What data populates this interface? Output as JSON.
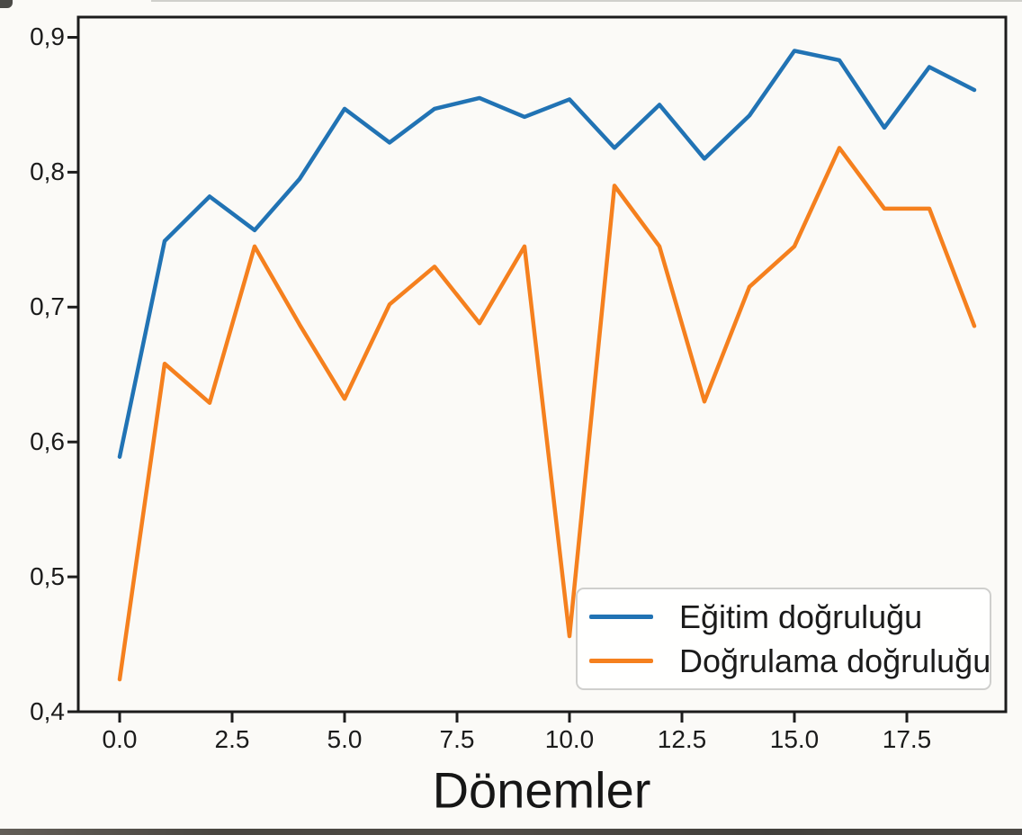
{
  "figure": {
    "background": "#fbfaf7",
    "spine_color": "#1c1c1c",
    "accent_blue": "#2173b4",
    "accent_orange": "#f5801e"
  },
  "axes": {
    "x": {
      "title": "Dönemler",
      "ticks": [
        {
          "value": 0,
          "label": "0.0"
        },
        {
          "value": 2.5,
          "label": "2.5"
        },
        {
          "value": 5,
          "label": "5.0"
        },
        {
          "value": 7.5,
          "label": "7.5"
        },
        {
          "value": 10,
          "label": "10.0"
        },
        {
          "value": 12.5,
          "label": "12.5"
        },
        {
          "value": 15,
          "label": "15.0"
        },
        {
          "value": 17.5,
          "label": "17.5"
        }
      ]
    },
    "y": {
      "ticks": [
        {
          "value": 0.4,
          "label": "0,4"
        },
        {
          "value": 0.5,
          "label": "0,5"
        },
        {
          "value": 0.6,
          "label": "0,6"
        },
        {
          "value": 0.7,
          "label": "0,7"
        },
        {
          "value": 0.8,
          "label": "0,8"
        },
        {
          "value": 0.9,
          "label": "0,9"
        }
      ]
    }
  },
  "legend": {
    "position": "lower right",
    "items": [
      {
        "label": "Eğitim doğruluğu",
        "color": "#2173b4"
      },
      {
        "label": "Doğrulama doğruluğu",
        "color": "#f5801e"
      }
    ]
  },
  "chart_data": {
    "type": "line",
    "title": "",
    "xlabel": "Dönemler",
    "ylabel": "",
    "grid": false,
    "legend_position": "lower right",
    "xlim": [
      -0.92,
      19.7
    ],
    "ylim": [
      0.4,
      0.915
    ],
    "x_ticks": [
      0,
      2.5,
      5,
      7.5,
      10,
      12.5,
      15,
      17.5
    ],
    "y_ticks": [
      0.4,
      0.5,
      0.6,
      0.7,
      0.8,
      0.9
    ],
    "x": [
      0,
      1,
      2,
      3,
      4,
      5,
      6,
      7,
      8,
      9,
      10,
      11,
      12,
      13,
      14,
      15,
      16,
      17,
      18,
      19
    ],
    "series": [
      {
        "name": "Eğitim doğruluğu",
        "color": "#2173b4",
        "values": [
          0.589,
          0.749,
          0.782,
          0.757,
          0.795,
          0.847,
          0.822,
          0.847,
          0.855,
          0.841,
          0.854,
          0.818,
          0.85,
          0.81,
          0.842,
          0.89,
          0.883,
          0.833,
          0.878,
          0.861
        ]
      },
      {
        "name": "Doğrulama doğruluğu",
        "color": "#f5801e",
        "values": [
          0.424,
          0.658,
          0.629,
          0.745,
          0.687,
          0.632,
          0.702,
          0.73,
          0.688,
          0.745,
          0.456,
          0.79,
          0.745,
          0.63,
          0.715,
          0.745,
          0.818,
          0.773,
          0.773,
          0.686
        ]
      }
    ]
  }
}
